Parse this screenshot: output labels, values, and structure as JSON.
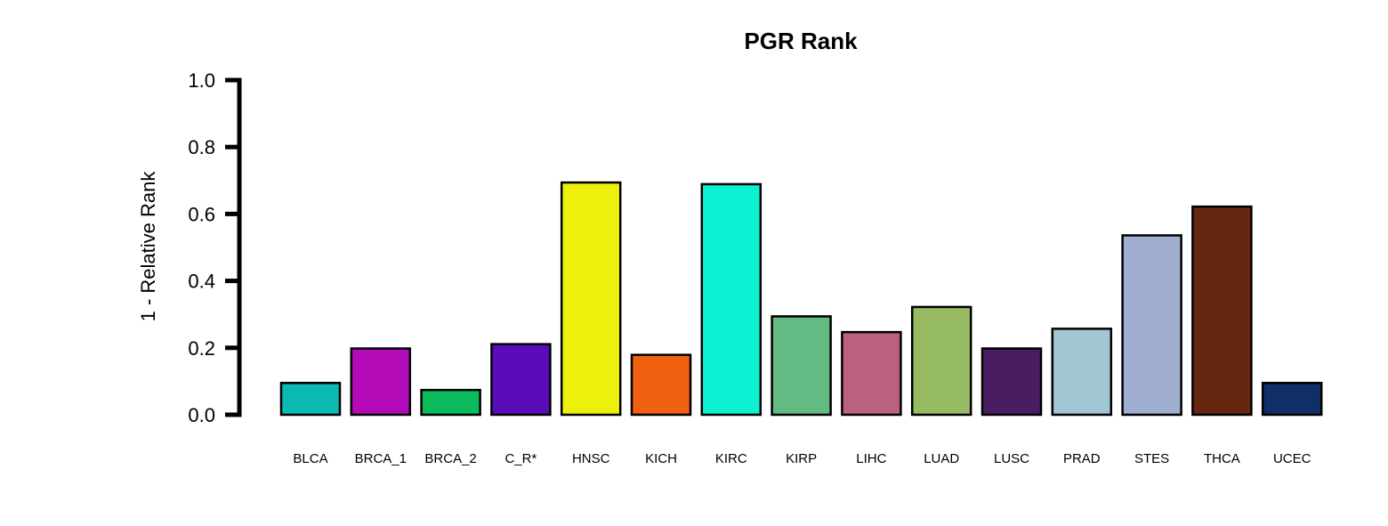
{
  "chart_data": {
    "type": "bar",
    "title": "PGR Rank",
    "xlabel": "",
    "ylabel": "1 - Relative Rank",
    "ylim": [
      0,
      1
    ],
    "yticks": [
      "0.0",
      "0.2",
      "0.4",
      "0.6",
      "0.8",
      "1.0"
    ],
    "ytick_values": [
      0,
      0.2,
      0.4,
      0.6,
      0.8,
      1.0
    ],
    "grid": false,
    "categories": [
      "BLCA",
      "BRCA_1",
      "BRCA_2",
      "C_R*",
      "HNSC",
      "KICH",
      "KIRC",
      "KIRP",
      "LIHC",
      "LUAD",
      "LUSC",
      "PRAD",
      "STES",
      "THCA",
      "UCEC"
    ],
    "values": [
      0.095,
      0.198,
      0.074,
      0.211,
      0.694,
      0.179,
      0.689,
      0.294,
      0.247,
      0.322,
      0.198,
      0.257,
      0.536,
      0.622,
      0.095
    ],
    "colors": [
      "#0BBBB3",
      "#B30BB8",
      "#0BBB5B",
      "#5B0BB8",
      "#EDF00B",
      "#F0600E",
      "#0EF0D2",
      "#62BB83",
      "#BC6082",
      "#96BB62",
      "#4A1C62",
      "#A2C5D3",
      "#A0AED2",
      "#662712",
      "#0F2F66"
    ]
  }
}
